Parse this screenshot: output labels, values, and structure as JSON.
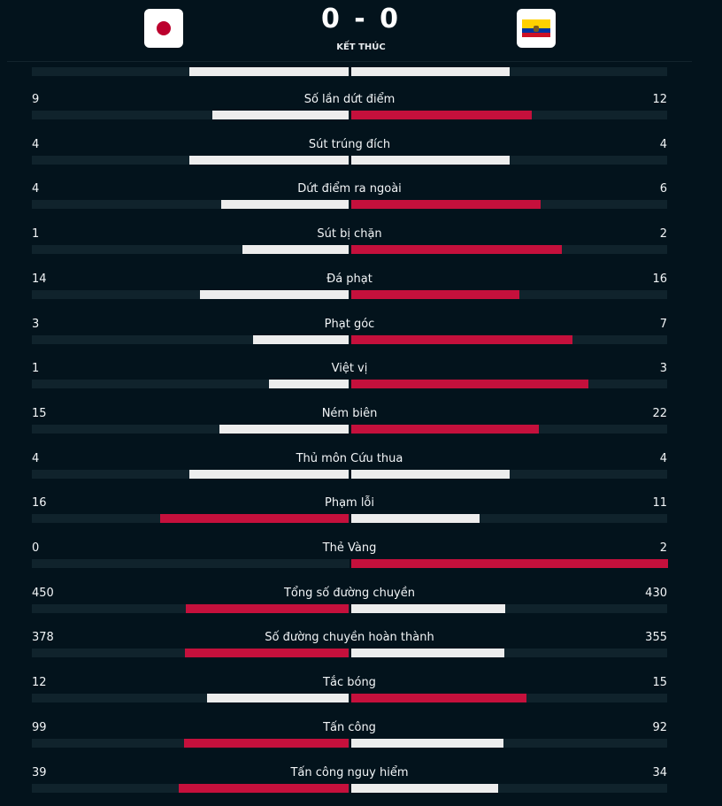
{
  "match": {
    "score": "0 - 0",
    "status": "KẾT THÚC",
    "home_flag_icon": "japan-flag-icon",
    "away_flag_icon": "ecuador-flag-icon"
  },
  "colors": {
    "background": "#03131c",
    "track": "#10232c",
    "leading": "#c5103c",
    "trailing": "#ededed"
  },
  "top_bar": {
    "home_share": 0.5,
    "away_share": 0.5
  },
  "stats": [
    {
      "label": "Số lần dứt điểm",
      "home": "9",
      "away": "12"
    },
    {
      "label": "Sút trúng đích",
      "home": "4",
      "away": "4"
    },
    {
      "label": "Dứt điểm ra ngoài",
      "home": "4",
      "away": "6"
    },
    {
      "label": "Sút bị chặn",
      "home": "1",
      "away": "2"
    },
    {
      "label": "Đá phạt",
      "home": "14",
      "away": "16"
    },
    {
      "label": "Phạt góc",
      "home": "3",
      "away": "7"
    },
    {
      "label": "Việt vị",
      "home": "1",
      "away": "3"
    },
    {
      "label": "Ném biên",
      "home": "15",
      "away": "22"
    },
    {
      "label": "Thủ môn Cứu thua",
      "home": "4",
      "away": "4"
    },
    {
      "label": "Phạm lỗi",
      "home": "16",
      "away": "11"
    },
    {
      "label": "Thẻ Vàng",
      "home": "0",
      "away": "2"
    },
    {
      "label": "Tổng số đường chuyền",
      "home": "450",
      "away": "430"
    },
    {
      "label": "Số đường chuyền hoàn thành",
      "home": "378",
      "away": "355"
    },
    {
      "label": "Tắc bóng",
      "home": "12",
      "away": "15"
    },
    {
      "label": "Tấn công",
      "home": "99",
      "away": "92"
    },
    {
      "label": "Tấn công nguy hiểm",
      "home": "39",
      "away": "34"
    }
  ]
}
